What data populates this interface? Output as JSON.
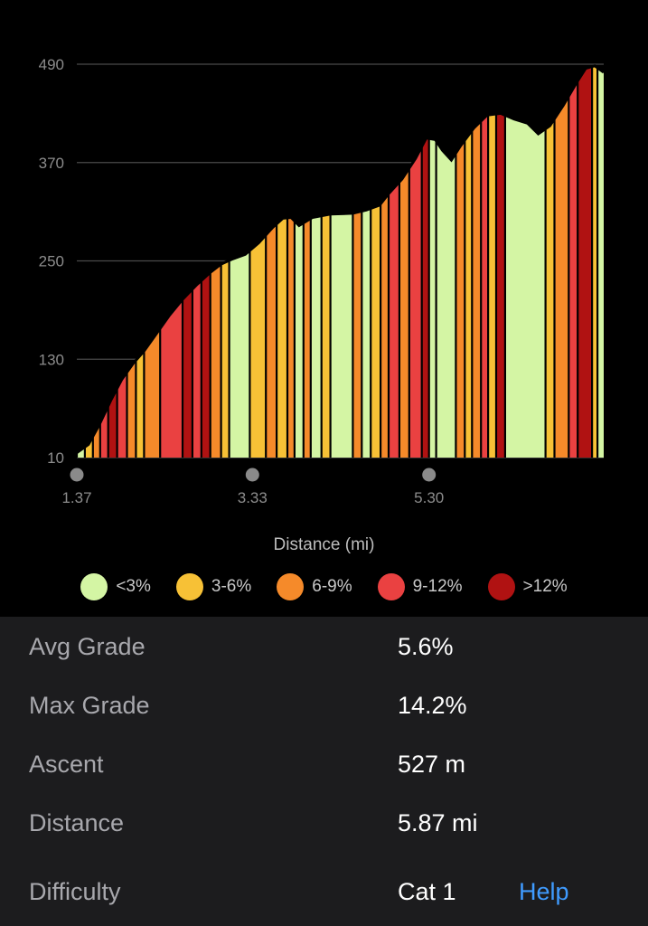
{
  "chart_data": {
    "type": "area",
    "xlabel": "Distance (mi)",
    "x_ticks": [
      "1.37",
      "3.33",
      "5.30"
    ],
    "x_range": [
      1.37,
      7.25
    ],
    "ylim": [
      10,
      490
    ],
    "y_ticks": [
      "490",
      "370",
      "250",
      "130",
      "10"
    ],
    "grid": true,
    "legend": [
      {
        "label": "<3%",
        "color": "#d4f5a4"
      },
      {
        "label": "3-6%",
        "color": "#f7c136"
      },
      {
        "label": "6-9%",
        "color": "#f58a2a"
      },
      {
        "label": "9-12%",
        "color": "#ea4141"
      },
      {
        "label": ">12%",
        "color": "#b01212"
      }
    ],
    "profile": [
      [
        1.37,
        16
      ],
      [
        1.5,
        26
      ],
      [
        1.62,
        50
      ],
      [
        1.75,
        80
      ],
      [
        1.87,
        105
      ],
      [
        2.0,
        125
      ],
      [
        2.12,
        140
      ],
      [
        2.25,
        160
      ],
      [
        2.4,
        183
      ],
      [
        2.55,
        203
      ],
      [
        2.7,
        220
      ],
      [
        2.85,
        235
      ],
      [
        2.98,
        246
      ],
      [
        3.1,
        252
      ],
      [
        3.25,
        258
      ],
      [
        3.4,
        272
      ],
      [
        3.55,
        290
      ],
      [
        3.67,
        302
      ],
      [
        3.76,
        303
      ],
      [
        3.85,
        293
      ],
      [
        4.0,
        303
      ],
      [
        4.2,
        307
      ],
      [
        4.45,
        308
      ],
      [
        4.6,
        312
      ],
      [
        4.75,
        318
      ],
      [
        4.85,
        332
      ],
      [
        5.0,
        350
      ],
      [
        5.15,
        375
      ],
      [
        5.27,
        400
      ],
      [
        5.37,
        398
      ],
      [
        5.45,
        385
      ],
      [
        5.55,
        373
      ],
      [
        5.65,
        390
      ],
      [
        5.8,
        412
      ],
      [
        5.95,
        428
      ],
      [
        6.1,
        430
      ],
      [
        6.25,
        423
      ],
      [
        6.4,
        418
      ],
      [
        6.52,
        405
      ],
      [
        6.65,
        415
      ],
      [
        6.8,
        440
      ],
      [
        6.95,
        468
      ],
      [
        7.05,
        485
      ],
      [
        7.15,
        488
      ],
      [
        7.25,
        480
      ]
    ],
    "grade_bands": [
      [
        1.37,
        1.46,
        "<3%"
      ],
      [
        1.46,
        1.55,
        "3-6%"
      ],
      [
        1.55,
        1.63,
        "6-9%"
      ],
      [
        1.63,
        1.72,
        "9-12%"
      ],
      [
        1.72,
        1.82,
        ">12%"
      ],
      [
        1.82,
        1.93,
        "9-12%"
      ],
      [
        1.93,
        2.03,
        "6-9%"
      ],
      [
        2.03,
        2.12,
        "3-6%"
      ],
      [
        2.12,
        2.3,
        "6-9%"
      ],
      [
        2.3,
        2.55,
        "9-12%"
      ],
      [
        2.55,
        2.66,
        ">12%"
      ],
      [
        2.66,
        2.76,
        "9-12%"
      ],
      [
        2.76,
        2.86,
        ">12%"
      ],
      [
        2.86,
        2.98,
        "6-9%"
      ],
      [
        2.98,
        3.07,
        "3-6%"
      ],
      [
        3.07,
        3.3,
        "<3%"
      ],
      [
        3.3,
        3.48,
        "3-6%"
      ],
      [
        3.48,
        3.6,
        "6-9%"
      ],
      [
        3.6,
        3.72,
        "3-6%"
      ],
      [
        3.72,
        3.8,
        "6-9%"
      ],
      [
        3.8,
        3.9,
        "<3%"
      ],
      [
        3.9,
        3.98,
        "6-9%"
      ],
      [
        3.98,
        4.1,
        "<3%"
      ],
      [
        4.1,
        4.2,
        "3-6%"
      ],
      [
        4.2,
        4.45,
        "<3%"
      ],
      [
        4.45,
        4.55,
        "6-9%"
      ],
      [
        4.55,
        4.65,
        "<3%"
      ],
      [
        4.65,
        4.76,
        "3-6%"
      ],
      [
        4.76,
        4.85,
        "6-9%"
      ],
      [
        4.85,
        4.97,
        "9-12%"
      ],
      [
        4.97,
        5.08,
        "6-9%"
      ],
      [
        5.08,
        5.22,
        "9-12%"
      ],
      [
        5.22,
        5.3,
        ">12%"
      ],
      [
        5.3,
        5.38,
        "<3%"
      ],
      [
        5.38,
        5.6,
        "<3%"
      ],
      [
        5.6,
        5.7,
        "6-9%"
      ],
      [
        5.7,
        5.78,
        "3-6%"
      ],
      [
        5.78,
        5.88,
        "6-9%"
      ],
      [
        5.88,
        5.96,
        "9-12%"
      ],
      [
        5.96,
        6.05,
        "3-6%"
      ],
      [
        6.05,
        6.15,
        ">12%"
      ],
      [
        6.15,
        6.6,
        "<3%"
      ],
      [
        6.6,
        6.7,
        "3-6%"
      ],
      [
        6.7,
        6.86,
        "6-9%"
      ],
      [
        6.86,
        6.96,
        "9-12%"
      ],
      [
        6.96,
        7.12,
        ">12%"
      ],
      [
        7.12,
        7.18,
        "3-6%"
      ],
      [
        7.18,
        7.25,
        "<3%"
      ]
    ]
  },
  "stats": {
    "avg_grade_label": "Avg Grade",
    "avg_grade_value": "5.6%",
    "max_grade_label": "Max Grade",
    "max_grade_value": "14.2%",
    "ascent_label": "Ascent",
    "ascent_value": "527 m",
    "distance_label": "Distance",
    "distance_value": "5.87 mi",
    "difficulty_label": "Difficulty",
    "difficulty_value": "Cat 1",
    "help_label": "Help"
  },
  "colors": {
    "background": "#000000",
    "panel": "#1c1c1e",
    "link": "#3f9bff"
  }
}
